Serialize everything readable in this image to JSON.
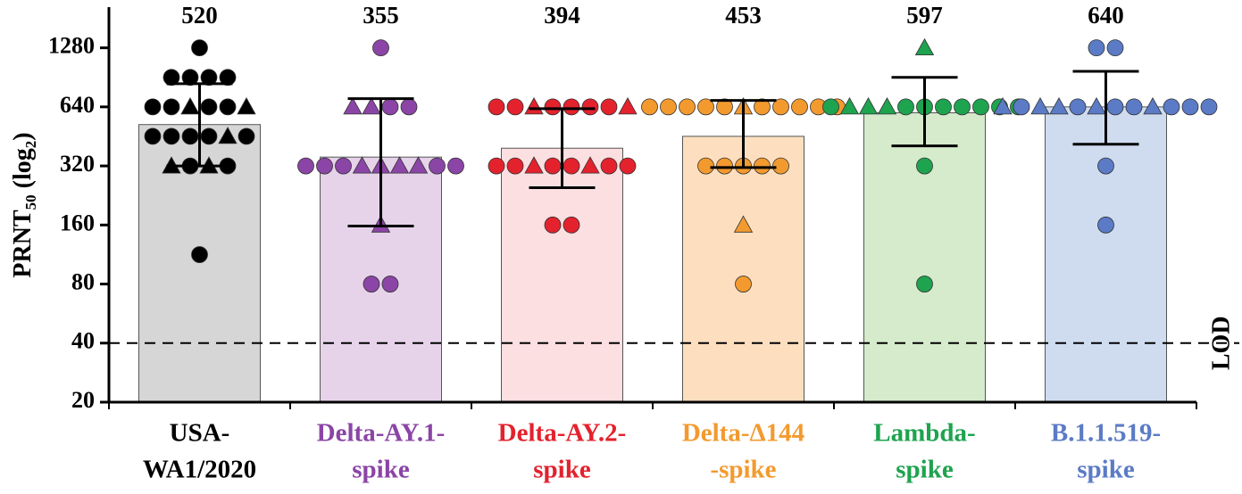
{
  "chart_data": {
    "type": "bar",
    "ylabel": [
      "PRNT",
      "50",
      " (log",
      "2",
      ")"
    ],
    "log_base": 2,
    "ylim": [
      20,
      2000
    ],
    "yticks": [
      20,
      40,
      80,
      160,
      320,
      640,
      1280
    ],
    "categories": [
      [
        "USA-",
        "WA1/2020"
      ],
      [
        "Delta-AY.1-",
        "spike"
      ],
      [
        "Delta-AY.2-",
        "spike"
      ],
      [
        "Delta-Δ144",
        "-spike"
      ],
      [
        "Lambda-",
        "spike"
      ],
      [
        "B.1.1.519-",
        "spike"
      ]
    ],
    "values": [
      520,
      355,
      394,
      453,
      597,
      640
    ],
    "error_low": [
      320,
      158,
      248,
      314,
      405,
      413
    ],
    "error_high": [
      840,
      705,
      627,
      690,
      905,
      972
    ],
    "label_colors": [
      "#000000",
      "#8b45a6",
      "#e3222d",
      "#f39a2f",
      "#1ea34f",
      "#5b7bc6"
    ],
    "bar_colors": [
      "#d6d6d6",
      "#e6d3ea",
      "#fbdfe1",
      "#fddfc0",
      "#d5ebcc",
      "#cfdcf0"
    ],
    "points": [
      [
        1280,
        905,
        905,
        905,
        905,
        640,
        640,
        640,
        640,
        640,
        640,
        453,
        453,
        453,
        453,
        453,
        453,
        320,
        320,
        320,
        320,
        113
      ],
      [
        1280,
        640,
        640,
        640,
        640,
        320,
        320,
        320,
        320,
        320,
        320,
        320,
        320,
        320,
        160,
        80,
        80
      ],
      [
        640,
        640,
        640,
        640,
        640,
        640,
        640,
        640,
        320,
        320,
        320,
        320,
        320,
        320,
        320,
        320,
        160,
        160
      ],
      [
        640,
        640,
        640,
        640,
        640,
        640,
        640,
        640,
        640,
        640,
        640,
        320,
        320,
        320,
        320,
        320,
        160,
        80
      ],
      [
        1280,
        640,
        640,
        640,
        640,
        640,
        640,
        640,
        640,
        640,
        640,
        640,
        320,
        80
      ],
      [
        1280,
        1280,
        640,
        640,
        640,
        640,
        640,
        640,
        640,
        640,
        640,
        640,
        640,
        640,
        320,
        160
      ]
    ],
    "point_shapes": [
      [
        "circle",
        "circle",
        "circle",
        "circle",
        "circle",
        "circle",
        "circle",
        "triangle",
        "circle",
        "circle",
        "triangle",
        "circle",
        "circle",
        "circle",
        "circle",
        "triangle",
        "circle",
        "triangle",
        "circle",
        "triangle",
        "circle",
        "circle"
      ],
      [
        "circle",
        "triangle",
        "triangle",
        "circle",
        "circle",
        "circle",
        "circle",
        "circle",
        "triangle",
        "triangle",
        "triangle",
        "triangle",
        "circle",
        "circle",
        "triangle",
        "circle",
        "circle"
      ],
      [
        "circle",
        "circle",
        "triangle",
        "circle",
        "circle",
        "circle",
        "circle",
        "triangle",
        "circle",
        "circle",
        "triangle",
        "circle",
        "circle",
        "triangle",
        "circle",
        "circle",
        "circle",
        "circle"
      ],
      [
        "circle",
        "circle",
        "circle",
        "circle",
        "circle",
        "triangle",
        "circle",
        "circle",
        "circle",
        "circle",
        "circle",
        "circle",
        "circle",
        "circle",
        "circle",
        "circle",
        "triangle",
        "circle"
      ],
      [
        "triangle",
        "circle",
        "triangle",
        "triangle",
        "triangle",
        "circle",
        "circle",
        "circle",
        "circle",
        "circle",
        "circle",
        "circle",
        "circle",
        "circle"
      ],
      [
        "circle",
        "circle",
        "triangle",
        "circle",
        "triangle",
        "triangle",
        "circle",
        "triangle",
        "circle",
        "circle",
        "triangle",
        "circle",
        "circle",
        "circle",
        "circle",
        "circle"
      ]
    ],
    "reference_line": {
      "value": 40,
      "label": "LOD"
    }
  }
}
